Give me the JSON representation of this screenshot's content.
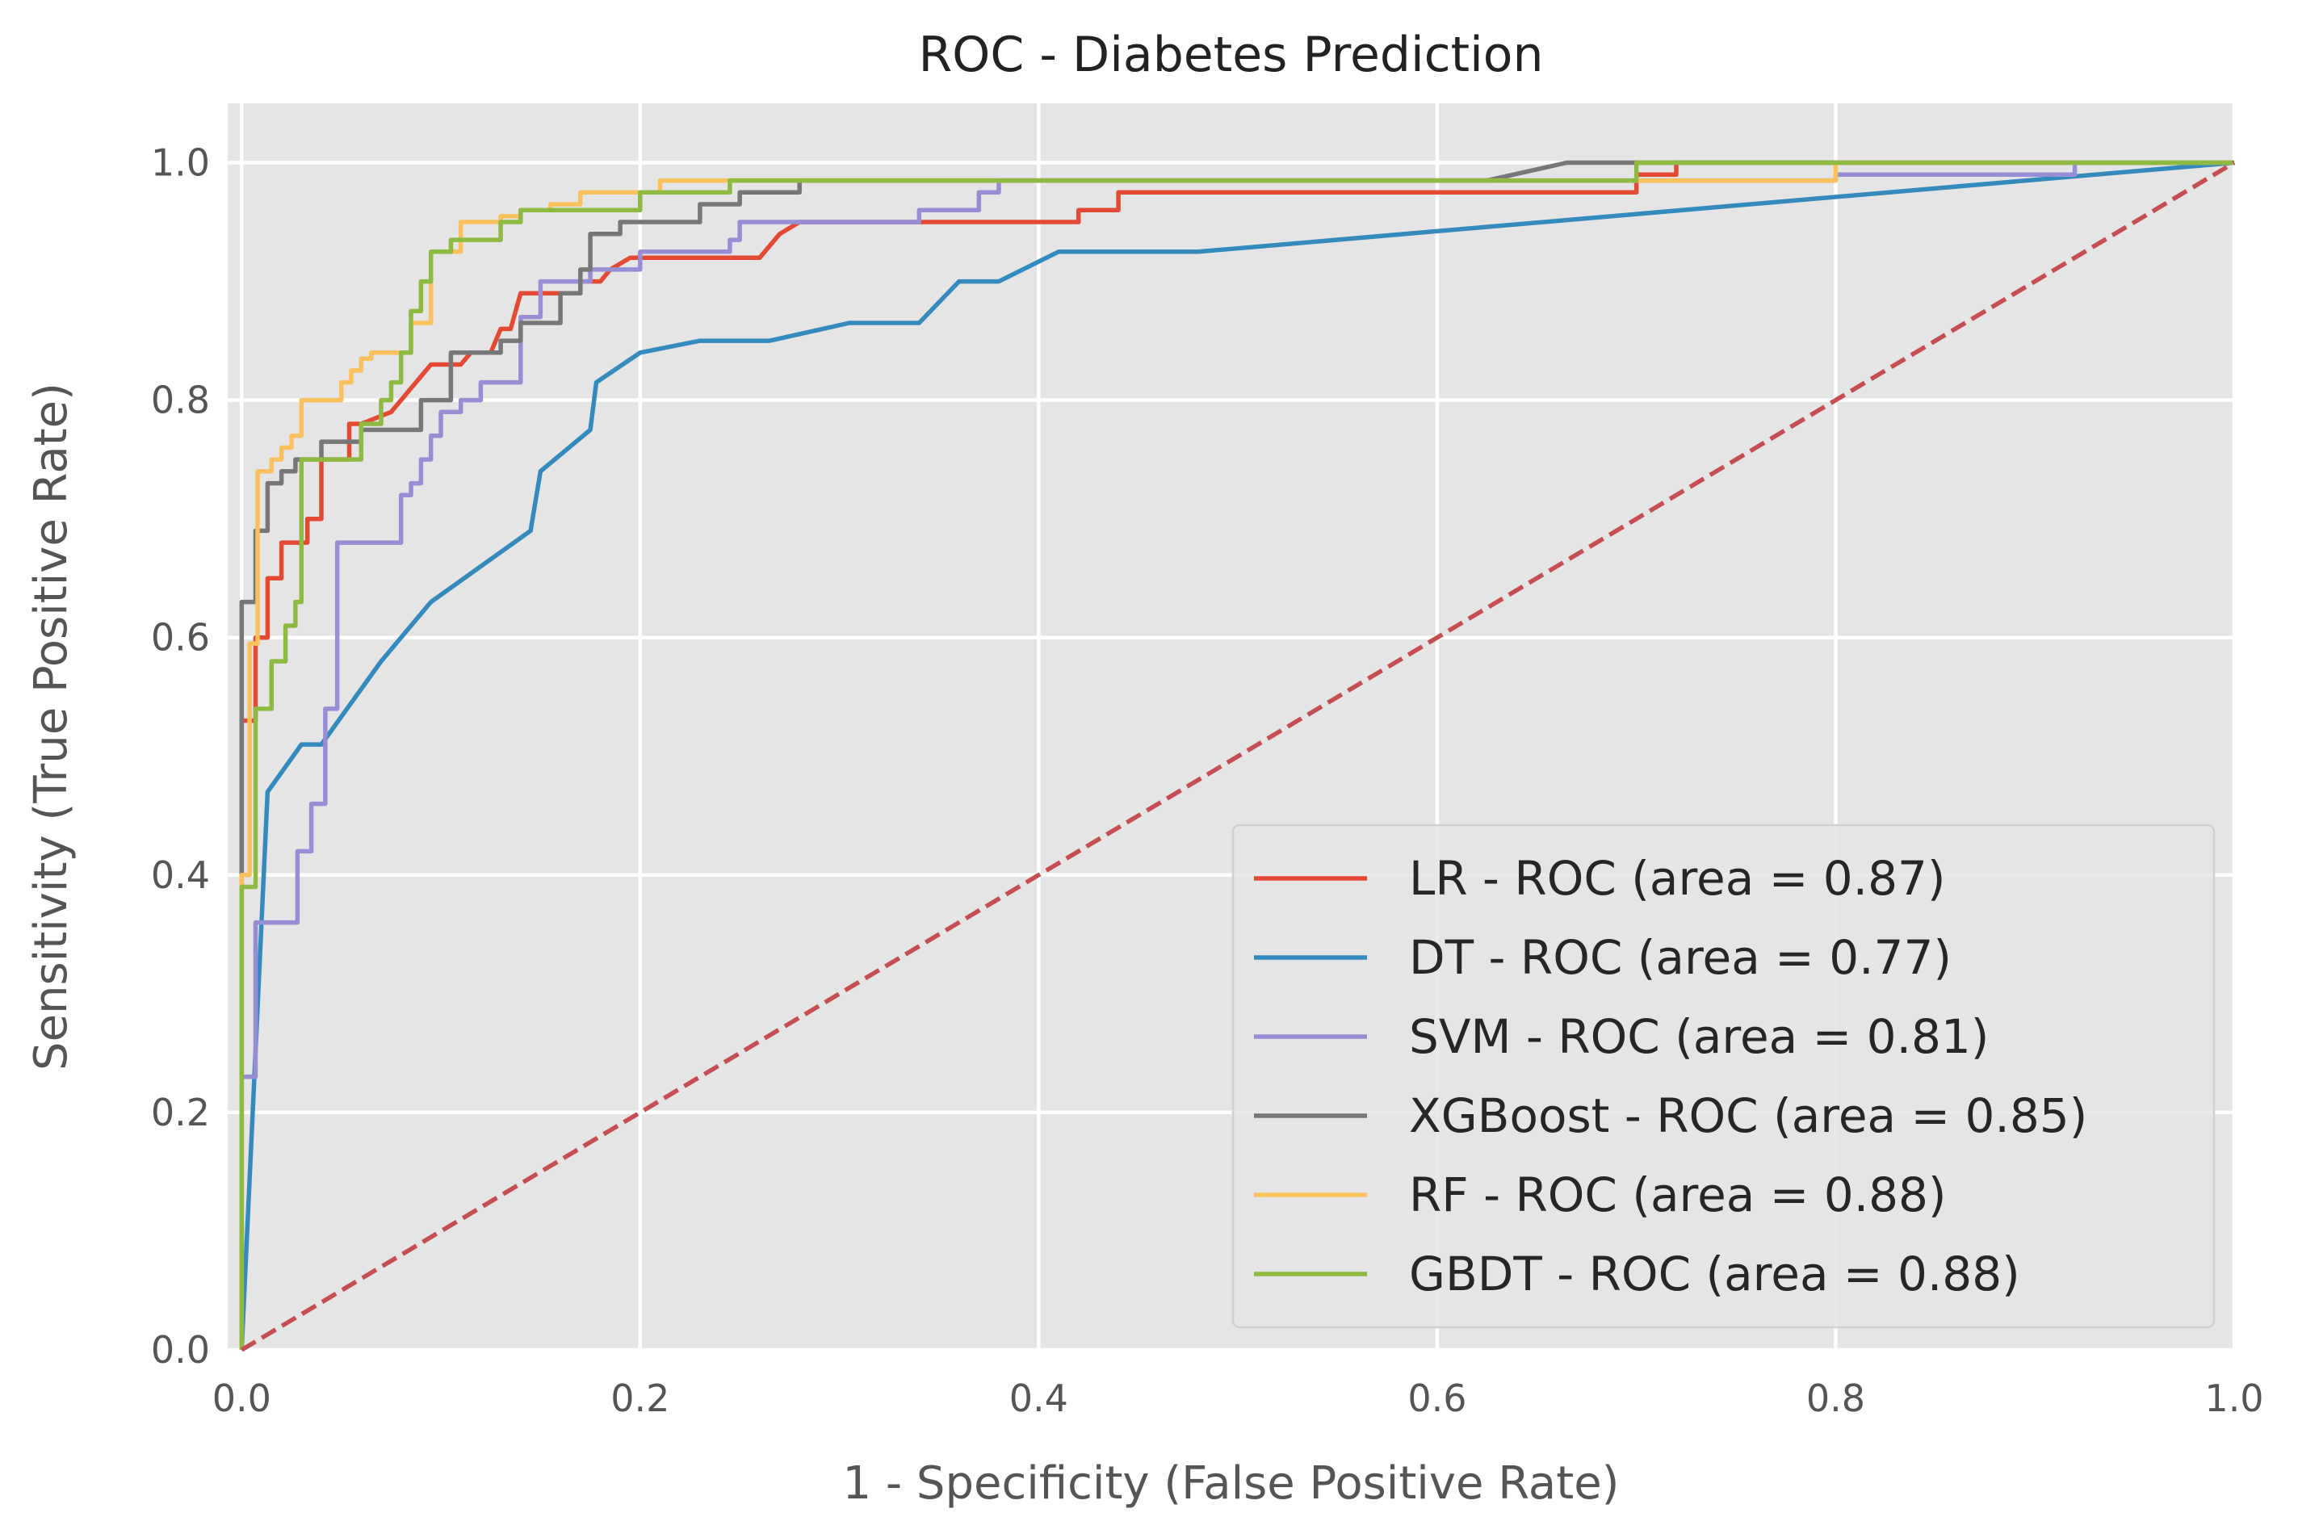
{
  "chart_data": {
    "type": "line",
    "title": "ROC - Diabetes Prediction",
    "xlabel": "1 - Specificity (False Positive Rate)",
    "ylabel": "Sensitivity (True Positive Rate)",
    "xlim": [
      -0.007,
      1.0
    ],
    "ylim": [
      0.0,
      1.05
    ],
    "xticks": [
      "0.0",
      "0.2",
      "0.4",
      "0.6",
      "0.8",
      "1.0"
    ],
    "yticks": [
      "0.0",
      "0.2",
      "0.4",
      "0.6",
      "0.8",
      "1.0"
    ],
    "grid": true,
    "legend_position": "lower-right",
    "background": "#e5e5e5",
    "series": [
      {
        "name": "LR - ROC (area = 0.87)",
        "color": "#e24a33",
        "points": [
          [
            0,
            0
          ],
          [
            0,
            0.53
          ],
          [
            0.007,
            0.53
          ],
          [
            0.007,
            0.6
          ],
          [
            0.013,
            0.6
          ],
          [
            0.013,
            0.65
          ],
          [
            0.02,
            0.65
          ],
          [
            0.02,
            0.68
          ],
          [
            0.033,
            0.68
          ],
          [
            0.033,
            0.7
          ],
          [
            0.04,
            0.7
          ],
          [
            0.04,
            0.75
          ],
          [
            0.054,
            0.75
          ],
          [
            0.054,
            0.78
          ],
          [
            0.06,
            0.78
          ],
          [
            0.075,
            0.79
          ],
          [
            0.08,
            0.8
          ],
          [
            0.085,
            0.81
          ],
          [
            0.09,
            0.82
          ],
          [
            0.095,
            0.83
          ],
          [
            0.11,
            0.83
          ],
          [
            0.115,
            0.84
          ],
          [
            0.125,
            0.84
          ],
          [
            0.13,
            0.86
          ],
          [
            0.135,
            0.86
          ],
          [
            0.14,
            0.89
          ],
          [
            0.17,
            0.89
          ],
          [
            0.17,
            0.9
          ],
          [
            0.18,
            0.9
          ],
          [
            0.185,
            0.91
          ],
          [
            0.195,
            0.92
          ],
          [
            0.245,
            0.92
          ],
          [
            0.26,
            0.92
          ],
          [
            0.27,
            0.94
          ],
          [
            0.28,
            0.95
          ],
          [
            0.34,
            0.95
          ],
          [
            0.42,
            0.95
          ],
          [
            0.42,
            0.96
          ],
          [
            0.44,
            0.96
          ],
          [
            0.44,
            0.975
          ],
          [
            0.7,
            0.975
          ],
          [
            0.7,
            0.99
          ],
          [
            0.72,
            0.99
          ],
          [
            0.72,
            1.0
          ],
          [
            1.0,
            1.0
          ]
        ]
      },
      {
        "name": "DT - ROC (area = 0.77)",
        "color": "#348abd",
        "points": [
          [
            0,
            0
          ],
          [
            0.013,
            0.47
          ],
          [
            0.03,
            0.51
          ],
          [
            0.04,
            0.51
          ],
          [
            0.07,
            0.58
          ],
          [
            0.095,
            0.63
          ],
          [
            0.145,
            0.69
          ],
          [
            0.15,
            0.74
          ],
          [
            0.175,
            0.775
          ],
          [
            0.178,
            0.815
          ],
          [
            0.2,
            0.84
          ],
          [
            0.23,
            0.85
          ],
          [
            0.265,
            0.85
          ],
          [
            0.305,
            0.865
          ],
          [
            0.34,
            0.865
          ],
          [
            0.36,
            0.9
          ],
          [
            0.38,
            0.9
          ],
          [
            0.41,
            0.925
          ],
          [
            0.48,
            0.925
          ],
          [
            1.0,
            1.0
          ]
        ]
      },
      {
        "name": "SVM - ROC (area = 0.81)",
        "color": "#988ed5",
        "points": [
          [
            0,
            0
          ],
          [
            0,
            0.23
          ],
          [
            0.007,
            0.23
          ],
          [
            0.007,
            0.36
          ],
          [
            0.028,
            0.36
          ],
          [
            0.028,
            0.42
          ],
          [
            0.035,
            0.42
          ],
          [
            0.035,
            0.46
          ],
          [
            0.042,
            0.46
          ],
          [
            0.042,
            0.54
          ],
          [
            0.048,
            0.54
          ],
          [
            0.048,
            0.68
          ],
          [
            0.08,
            0.68
          ],
          [
            0.08,
            0.72
          ],
          [
            0.085,
            0.72
          ],
          [
            0.085,
            0.73
          ],
          [
            0.09,
            0.73
          ],
          [
            0.09,
            0.75
          ],
          [
            0.095,
            0.75
          ],
          [
            0.095,
            0.77
          ],
          [
            0.1,
            0.77
          ],
          [
            0.1,
            0.79
          ],
          [
            0.11,
            0.79
          ],
          [
            0.11,
            0.8
          ],
          [
            0.12,
            0.8
          ],
          [
            0.12,
            0.815
          ],
          [
            0.14,
            0.815
          ],
          [
            0.14,
            0.87
          ],
          [
            0.15,
            0.87
          ],
          [
            0.15,
            0.9
          ],
          [
            0.175,
            0.9
          ],
          [
            0.175,
            0.91
          ],
          [
            0.2,
            0.91
          ],
          [
            0.2,
            0.925
          ],
          [
            0.245,
            0.925
          ],
          [
            0.245,
            0.935
          ],
          [
            0.25,
            0.935
          ],
          [
            0.25,
            0.95
          ],
          [
            0.34,
            0.95
          ],
          [
            0.34,
            0.96
          ],
          [
            0.37,
            0.96
          ],
          [
            0.37,
            0.975
          ],
          [
            0.38,
            0.975
          ],
          [
            0.38,
            0.985
          ],
          [
            0.8,
            0.985
          ],
          [
            0.8,
            0.99
          ],
          [
            0.92,
            0.99
          ],
          [
            0.92,
            1.0
          ],
          [
            1.0,
            1.0
          ]
        ]
      },
      {
        "name": "XGBoost - ROC (area = 0.85)",
        "color": "#777777",
        "points": [
          [
            0,
            0
          ],
          [
            0,
            0.63
          ],
          [
            0.007,
            0.63
          ],
          [
            0.007,
            0.69
          ],
          [
            0.013,
            0.69
          ],
          [
            0.013,
            0.73
          ],
          [
            0.02,
            0.73
          ],
          [
            0.02,
            0.74
          ],
          [
            0.027,
            0.74
          ],
          [
            0.027,
            0.75
          ],
          [
            0.04,
            0.75
          ],
          [
            0.04,
            0.765
          ],
          [
            0.06,
            0.765
          ],
          [
            0.06,
            0.775
          ],
          [
            0.09,
            0.775
          ],
          [
            0.09,
            0.8
          ],
          [
            0.105,
            0.8
          ],
          [
            0.105,
            0.84
          ],
          [
            0.13,
            0.84
          ],
          [
            0.13,
            0.85
          ],
          [
            0.14,
            0.85
          ],
          [
            0.14,
            0.865
          ],
          [
            0.16,
            0.865
          ],
          [
            0.16,
            0.89
          ],
          [
            0.17,
            0.89
          ],
          [
            0.17,
            0.91
          ],
          [
            0.175,
            0.91
          ],
          [
            0.175,
            0.94
          ],
          [
            0.19,
            0.94
          ],
          [
            0.19,
            0.95
          ],
          [
            0.23,
            0.95
          ],
          [
            0.23,
            0.965
          ],
          [
            0.25,
            0.965
          ],
          [
            0.25,
            0.975
          ],
          [
            0.28,
            0.975
          ],
          [
            0.28,
            0.985
          ],
          [
            0.6,
            0.985
          ],
          [
            0.625,
            0.985
          ],
          [
            0.665,
            1.0
          ],
          [
            1.0,
            1.0
          ]
        ]
      },
      {
        "name": "RF - ROC (area = 0.88)",
        "color": "#fbc15e",
        "points": [
          [
            0,
            0
          ],
          [
            0,
            0.4
          ],
          [
            0.004,
            0.4
          ],
          [
            0.004,
            0.595
          ],
          [
            0.008,
            0.595
          ],
          [
            0.008,
            0.74
          ],
          [
            0.015,
            0.74
          ],
          [
            0.015,
            0.75
          ],
          [
            0.02,
            0.75
          ],
          [
            0.02,
            0.76
          ],
          [
            0.025,
            0.76
          ],
          [
            0.025,
            0.77
          ],
          [
            0.03,
            0.77
          ],
          [
            0.03,
            0.8
          ],
          [
            0.05,
            0.8
          ],
          [
            0.05,
            0.815
          ],
          [
            0.055,
            0.815
          ],
          [
            0.055,
            0.825
          ],
          [
            0.06,
            0.825
          ],
          [
            0.06,
            0.835
          ],
          [
            0.065,
            0.835
          ],
          [
            0.065,
            0.84
          ],
          [
            0.085,
            0.84
          ],
          [
            0.085,
            0.865
          ],
          [
            0.095,
            0.865
          ],
          [
            0.095,
            0.925
          ],
          [
            0.11,
            0.925
          ],
          [
            0.11,
            0.95
          ],
          [
            0.13,
            0.95
          ],
          [
            0.13,
            0.955
          ],
          [
            0.14,
            0.955
          ],
          [
            0.14,
            0.96
          ],
          [
            0.155,
            0.96
          ],
          [
            0.155,
            0.965
          ],
          [
            0.17,
            0.965
          ],
          [
            0.17,
            0.975
          ],
          [
            0.21,
            0.975
          ],
          [
            0.21,
            0.985
          ],
          [
            0.8,
            0.985
          ],
          [
            0.8,
            1.0
          ],
          [
            1.0,
            1.0
          ]
        ]
      },
      {
        "name": "GBDT - ROC (area = 0.88)",
        "color": "#8eba42",
        "points": [
          [
            0,
            0
          ],
          [
            0,
            0.39
          ],
          [
            0.007,
            0.39
          ],
          [
            0.007,
            0.54
          ],
          [
            0.015,
            0.54
          ],
          [
            0.015,
            0.58
          ],
          [
            0.022,
            0.58
          ],
          [
            0.022,
            0.61
          ],
          [
            0.027,
            0.61
          ],
          [
            0.027,
            0.63
          ],
          [
            0.03,
            0.63
          ],
          [
            0.03,
            0.75
          ],
          [
            0.06,
            0.75
          ],
          [
            0.06,
            0.78
          ],
          [
            0.07,
            0.78
          ],
          [
            0.07,
            0.8
          ],
          [
            0.075,
            0.8
          ],
          [
            0.075,
            0.815
          ],
          [
            0.08,
            0.815
          ],
          [
            0.08,
            0.84
          ],
          [
            0.085,
            0.84
          ],
          [
            0.085,
            0.875
          ],
          [
            0.09,
            0.875
          ],
          [
            0.09,
            0.9
          ],
          [
            0.095,
            0.9
          ],
          [
            0.095,
            0.925
          ],
          [
            0.105,
            0.925
          ],
          [
            0.105,
            0.935
          ],
          [
            0.13,
            0.935
          ],
          [
            0.13,
            0.95
          ],
          [
            0.14,
            0.95
          ],
          [
            0.14,
            0.96
          ],
          [
            0.2,
            0.96
          ],
          [
            0.2,
            0.975
          ],
          [
            0.245,
            0.975
          ],
          [
            0.245,
            0.985
          ],
          [
            0.7,
            0.985
          ],
          [
            0.7,
            1.0
          ],
          [
            1.0,
            1.0
          ]
        ]
      },
      {
        "name": "",
        "color": "#c44e52",
        "dashed": true,
        "points": [
          [
            0,
            0
          ],
          [
            1,
            1
          ]
        ]
      }
    ]
  }
}
